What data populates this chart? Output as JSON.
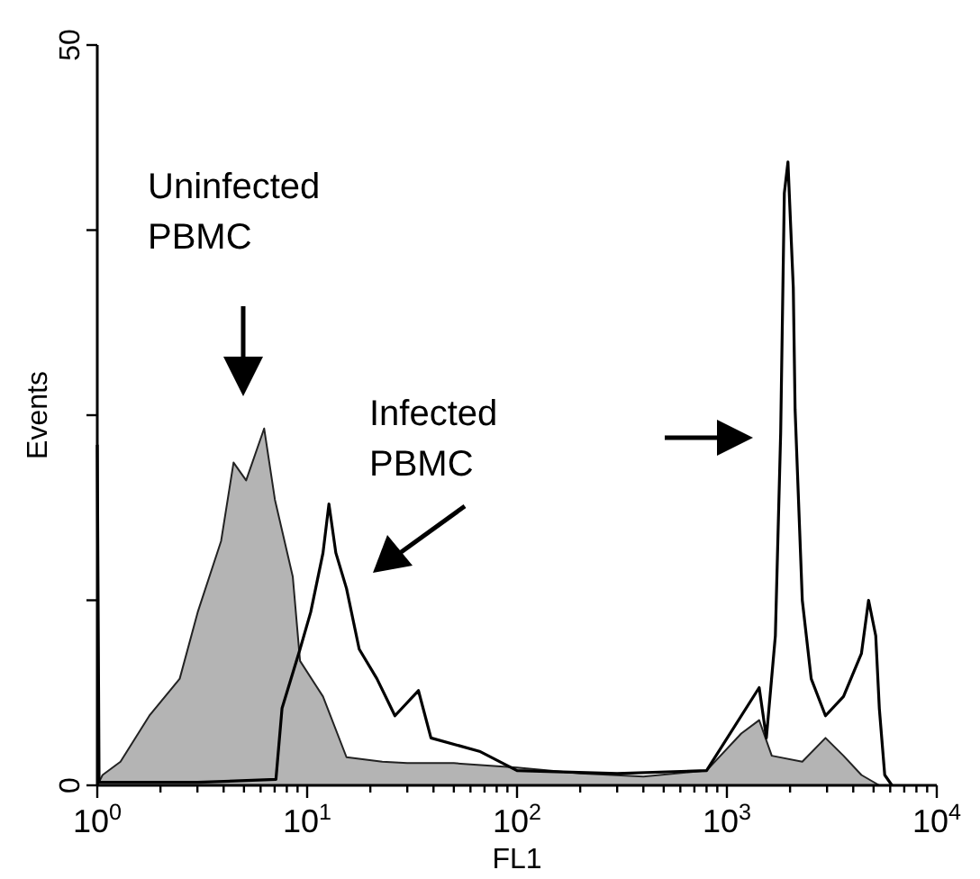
{
  "chart_data": {
    "type": "area",
    "xlabel": "FL1",
    "ylabel": "Events",
    "log": "x",
    "xlim": [
      1,
      10000
    ],
    "ylim": [
      0,
      50
    ],
    "xticks": [
      {
        "value": 1,
        "label": "10$^{0}$"
      },
      {
        "value": 2,
        "label": null
      },
      {
        "value": 3,
        "label": null
      },
      {
        "value": 4,
        "label": null
      },
      {
        "value": 5,
        "label": null
      },
      {
        "value": 6,
        "label": null
      },
      {
        "value": 7,
        "label": null
      },
      {
        "value": 8,
        "label": null
      },
      {
        "value": 9,
        "label": null
      },
      {
        "value": 10,
        "label": "10$^{1}$"
      },
      {
        "value": 20,
        "label": null
      },
      {
        "value": 30,
        "label": null
      },
      {
        "value": 40,
        "label": null
      },
      {
        "value": 50,
        "label": null
      },
      {
        "value": 60,
        "label": null
      },
      {
        "value": 70,
        "label": null
      },
      {
        "value": 80,
        "label": null
      },
      {
        "value": 90,
        "label": null
      },
      {
        "value": 100,
        "label": "10$^{2}$"
      },
      {
        "value": 200,
        "label": null
      },
      {
        "value": 300,
        "label": null
      },
      {
        "value": 400,
        "label": null
      },
      {
        "value": 500,
        "label": null
      },
      {
        "value": 600,
        "label": null
      },
      {
        "value": 700,
        "label": null
      },
      {
        "value": 800,
        "label": null
      },
      {
        "value": 900,
        "label": null
      },
      {
        "value": 1000,
        "label": "10$^{3}$"
      },
      {
        "value": 2000,
        "label": null
      },
      {
        "value": 3000,
        "label": null
      },
      {
        "value": 4000,
        "label": null
      },
      {
        "value": 5000,
        "label": null
      },
      {
        "value": 6000,
        "label": null
      },
      {
        "value": 7000,
        "label": null
      },
      {
        "value": 8000,
        "label": null
      },
      {
        "value": 9000,
        "label": null
      },
      {
        "value": 10000,
        "label": "10$^{4}$"
      }
    ],
    "yticks": [
      0,
      {
        "value": 12.5,
        "label": null
      },
      {
        "value": 25,
        "label": null
      },
      {
        "value": 37.5,
        "label": null
      },
      50
    ],
    "series": [
      {
        "color": "#b4b4b4",
        "x": [
          1,
          1.06,
          1.29,
          1.77,
          2.47,
          3.01,
          3.89,
          4.46,
          5.12,
          6.24,
          7.02,
          8.54,
          9.25,
          11.9,
          15.4,
          22.8,
          30,
          50,
          100,
          200,
          400,
          800,
          1170,
          1425,
          1636,
          2287,
          2950,
          3594,
          4375,
          5325
        ],
        "values": [
          0,
          0.7,
          1.6,
          4.7,
          7.2,
          11.7,
          16.5,
          21.8,
          20.6,
          24.1,
          19.3,
          14.1,
          8.4,
          6,
          1.9,
          1.6,
          1.5,
          1.5,
          1.2,
          0.8,
          0.6,
          1,
          3.5,
          4.4,
          2,
          1.6,
          3.2,
          2,
          0.7,
          0
        ]
      },
      {
        "type": "line",
        "color": "#000000",
        "x": [
          1,
          1.02,
          3,
          7.1,
          7.59,
          9.25,
          10.4,
          11.9,
          12.7,
          13.7,
          15.4,
          17.7,
          21.5,
          26.2,
          33.9,
          38.9,
          66.2,
          100,
          300,
          800,
          1425,
          1542,
          1702,
          1804,
          1878,
          1954,
          2072,
          2113,
          2287,
          2522,
          2950,
          3594,
          4375,
          4733,
          5120,
          5325,
          5650,
          6115
        ],
        "values": [
          23,
          0.2,
          0.2,
          0.4,
          5.2,
          9.2,
          11.7,
          15.7,
          19,
          15.7,
          13.3,
          9.2,
          7.2,
          4.7,
          6.4,
          3.2,
          2.3,
          1,
          0.8,
          1,
          6.6,
          3.2,
          10.1,
          23.8,
          40,
          42.1,
          33.6,
          25.4,
          12.5,
          7.2,
          4.7,
          6,
          8.9,
          12.5,
          10.1,
          5.2,
          0.7,
          0
        ]
      }
    ],
    "annotations": [
      "Uninfected PBMC",
      "Infected PBMC"
    ]
  }
}
